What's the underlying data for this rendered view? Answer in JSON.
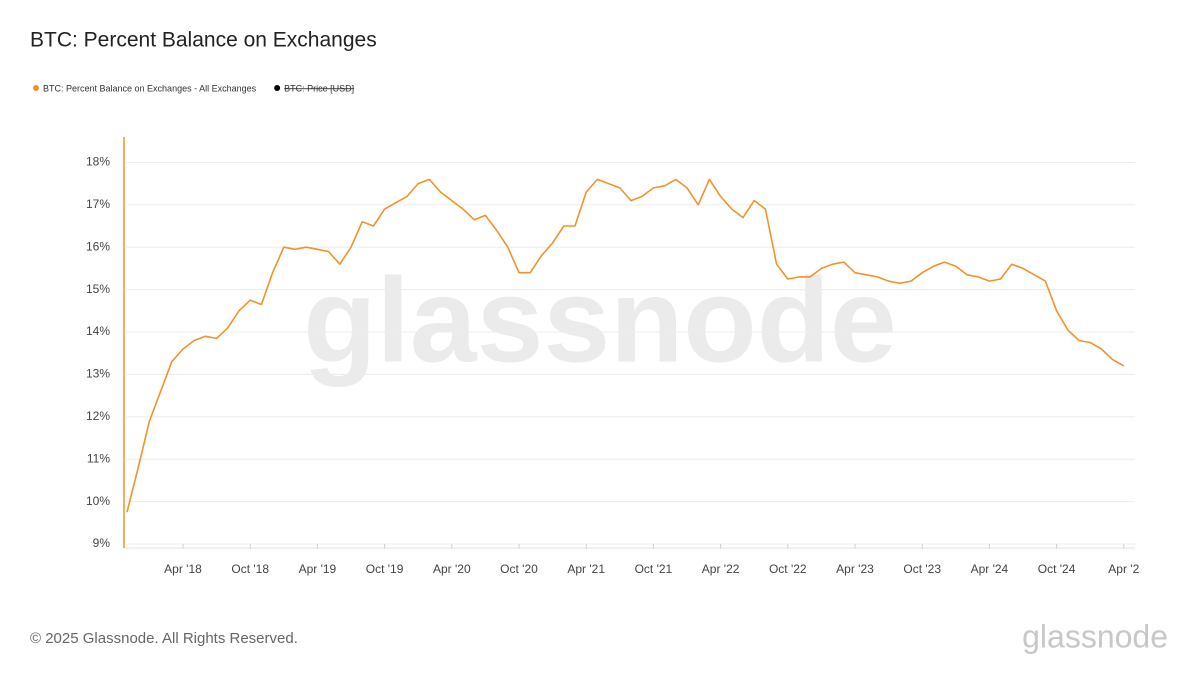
{
  "chart_data": {
    "type": "line",
    "title": "BTC: Percent Balance on Exchanges",
    "watermark": "glassnode",
    "footer": "© 2025 Glassnode. All Rights Reserved.",
    "logo": "glassnode",
    "grid": true,
    "hidden_series": [
      {
        "name": "BTC: Price [USD]",
        "color": "#000000"
      }
    ],
    "x": [
      "2017-11",
      "2017-12",
      "2018-01",
      "2018-02",
      "2018-03",
      "2018-04",
      "2018-05",
      "2018-06",
      "2018-07",
      "2018-08",
      "2018-09",
      "2018-10",
      "2018-11",
      "2018-12",
      "2019-01",
      "2019-02",
      "2019-03",
      "2019-04",
      "2019-05",
      "2019-06",
      "2019-07",
      "2019-08",
      "2019-09",
      "2019-10",
      "2019-11",
      "2019-12",
      "2020-01",
      "2020-02",
      "2020-03",
      "2020-04",
      "2020-05",
      "2020-06",
      "2020-07",
      "2020-08",
      "2020-09",
      "2020-10",
      "2020-11",
      "2020-12",
      "2021-01",
      "2021-02",
      "2021-03",
      "2021-04",
      "2021-05",
      "2021-06",
      "2021-07",
      "2021-08",
      "2021-09",
      "2021-10",
      "2021-11",
      "2021-12",
      "2022-01",
      "2022-02",
      "2022-03",
      "2022-04",
      "2022-05",
      "2022-06",
      "2022-07",
      "2022-08",
      "2022-09",
      "2022-10",
      "2022-11",
      "2022-12",
      "2023-01",
      "2023-02",
      "2023-03",
      "2023-04",
      "2023-05",
      "2023-06",
      "2023-07",
      "2023-08",
      "2023-09",
      "2023-10",
      "2023-11",
      "2023-12",
      "2024-01",
      "2024-02",
      "2024-03",
      "2024-04",
      "2024-05",
      "2024-06",
      "2024-07",
      "2024-08",
      "2024-09",
      "2024-10",
      "2024-11",
      "2024-12",
      "2025-01",
      "2025-02",
      "2025-03",
      "2025-04"
    ],
    "series": [
      {
        "name": "BTC: Percent Balance on Exchanges - All Exchanges",
        "color": "#f0932b",
        "values": [
          9.75,
          10.8,
          11.9,
          12.6,
          13.3,
          13.6,
          13.8,
          13.9,
          13.85,
          14.1,
          14.5,
          14.75,
          14.65,
          15.4,
          16.0,
          15.95,
          16.0,
          15.95,
          15.9,
          15.6,
          16.0,
          16.6,
          16.5,
          16.9,
          17.05,
          17.2,
          17.5,
          17.6,
          17.3,
          17.1,
          16.9,
          16.65,
          16.75,
          16.4,
          16.0,
          15.4,
          15.4,
          15.8,
          16.1,
          16.5,
          16.5,
          17.3,
          17.6,
          17.5,
          17.4,
          17.1,
          17.2,
          17.4,
          17.45,
          17.6,
          17.4,
          17.0,
          17.6,
          17.2,
          16.9,
          16.7,
          17.1,
          16.9,
          15.6,
          15.25,
          15.3,
          15.3,
          15.5,
          15.6,
          15.65,
          15.4,
          15.35,
          15.3,
          15.2,
          15.15,
          15.2,
          15.4,
          15.55,
          15.65,
          15.55,
          15.35,
          15.3,
          15.2,
          15.25,
          15.6,
          15.5,
          15.35,
          15.2,
          14.5,
          14.05,
          13.8,
          13.75,
          13.6,
          13.35,
          13.2
        ]
      }
    ],
    "xlim": [
      "2017-11",
      "2025-05"
    ],
    "xticks": [
      {
        "value": "2018-04",
        "label": "Apr '18"
      },
      {
        "value": "2018-10",
        "label": "Oct '18"
      },
      {
        "value": "2019-04",
        "label": "Apr '19"
      },
      {
        "value": "2019-10",
        "label": "Oct '19"
      },
      {
        "value": "2020-04",
        "label": "Apr '20"
      },
      {
        "value": "2020-10",
        "label": "Oct '20"
      },
      {
        "value": "2021-04",
        "label": "Apr '21"
      },
      {
        "value": "2021-10",
        "label": "Oct '21"
      },
      {
        "value": "2022-04",
        "label": "Apr '22"
      },
      {
        "value": "2022-10",
        "label": "Oct '22"
      },
      {
        "value": "2023-04",
        "label": "Apr '23"
      },
      {
        "value": "2023-10",
        "label": "Oct '23"
      },
      {
        "value": "2024-04",
        "label": "Apr '24"
      },
      {
        "value": "2024-10",
        "label": "Oct '24"
      },
      {
        "value": "2025-04",
        "label": "Apr '2"
      }
    ],
    "ylim": [
      9,
      18.6
    ],
    "yticks": [
      {
        "value": 9,
        "label": "9%"
      },
      {
        "value": 10,
        "label": "10%"
      },
      {
        "value": 11,
        "label": "11%"
      },
      {
        "value": 12,
        "label": "12%"
      },
      {
        "value": 13,
        "label": "13%"
      },
      {
        "value": 14,
        "label": "14%"
      },
      {
        "value": 15,
        "label": "15%"
      },
      {
        "value": 16,
        "label": "16%"
      },
      {
        "value": 17,
        "label": "17%"
      },
      {
        "value": 18,
        "label": "18%"
      }
    ]
  }
}
